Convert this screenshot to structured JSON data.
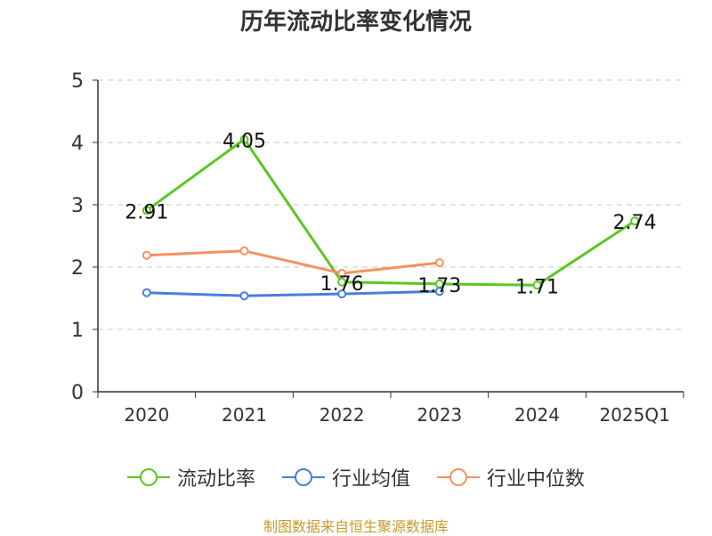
{
  "chart_data": {
    "type": "line",
    "title": "历年流动比率变化情况",
    "categories": [
      "2020",
      "2021",
      "2022",
      "2023",
      "2024",
      "2025Q1"
    ],
    "ylim": [
      0,
      5
    ],
    "yticks": [
      "0",
      "1",
      "2",
      "3",
      "4",
      "5"
    ],
    "grid": true,
    "legend_position": "bottom",
    "series": [
      {
        "name": "流动比率",
        "color": "#5cc623",
        "values": [
          2.91,
          4.05,
          1.76,
          1.73,
          1.71,
          2.74
        ],
        "labels": [
          "2.91",
          "4.05",
          "1.76",
          "1.73",
          "1.71",
          "2.74"
        ]
      },
      {
        "name": "行业均值",
        "color": "#4a7fd9",
        "values": [
          1.59,
          1.54,
          1.57,
          1.61,
          null,
          null
        ]
      },
      {
        "name": "行业中位数",
        "color": "#f5915f",
        "values": [
          2.19,
          2.26,
          1.9,
          2.07,
          null,
          null
        ]
      }
    ]
  },
  "source": {
    "text": "制图数据来自恒生聚源数据库",
    "color": "#c79a2e"
  }
}
